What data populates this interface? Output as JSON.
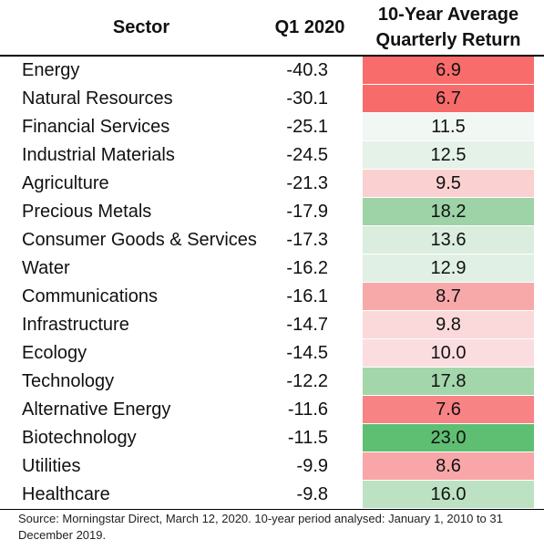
{
  "table": {
    "headers": {
      "sector": "Sector",
      "q1": "Q1 2020",
      "return_line1": "10-Year Average",
      "return_line2": "Quarterly Return"
    },
    "rows": [
      {
        "sector": "Energy",
        "q1": "-40.3",
        "ret": "6.9",
        "color": "#f86c6b"
      },
      {
        "sector": "Natural Resources",
        "q1": "-30.1",
        "ret": "6.7",
        "color": "#f86b6b"
      },
      {
        "sector": "Financial Services",
        "q1": "-25.1",
        "ret": "11.5",
        "color": "#f1f7f3"
      },
      {
        "sector": "Industrial Materials",
        "q1": "-24.5",
        "ret": "12.5",
        "color": "#e4f2e7"
      },
      {
        "sector": "Agriculture",
        "q1": "-21.3",
        "ret": "9.5",
        "color": "#fad0d0"
      },
      {
        "sector": "Precious Metals",
        "q1": "-17.9",
        "ret": "18.2",
        "color": "#9dd3a6"
      },
      {
        "sector": "Consumer Goods & Services",
        "q1": "-17.3",
        "ret": "13.6",
        "color": "#daedde"
      },
      {
        "sector": "Water",
        "q1": "-16.2",
        "ret": "12.9",
        "color": "#e1f0e4"
      },
      {
        "sector": "Communications",
        "q1": "-16.1",
        "ret": "8.7",
        "color": "#f7a9aa"
      },
      {
        "sector": "Infrastructure",
        "q1": "-14.7",
        "ret": "9.8",
        "color": "#fbd9da"
      },
      {
        "sector": "Ecology",
        "q1": "-14.5",
        "ret": "10.0",
        "color": "#fbdde0"
      },
      {
        "sector": "Technology",
        "q1": "-12.2",
        "ret": "17.8",
        "color": "#a3d6ab"
      },
      {
        "sector": "Alternative Energy",
        "q1": "-11.6",
        "ret": "7.6",
        "color": "#f88384"
      },
      {
        "sector": "Biotechnology",
        "q1": "-11.5",
        "ret": "23.0",
        "color": "#5ebe72"
      },
      {
        "sector": "Utilities",
        "q1": "-9.9",
        "ret": "8.6",
        "color": "#f8a6a7"
      },
      {
        "sector": "Healthcare",
        "q1": "-9.8",
        "ret": "16.0",
        "color": "#bde2c3"
      }
    ]
  },
  "footer": {
    "source": "Source: Morningstar Direct, March 12, 2020. 10-year period analysed: January 1, 2010 to 31 December 2019."
  }
}
